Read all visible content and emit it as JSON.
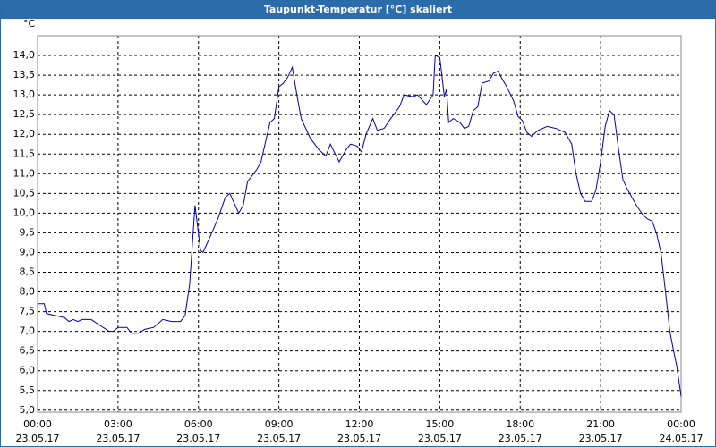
{
  "window_title": "Taupunkt-Temperatur [°C] skaliert",
  "chart_data": {
    "type": "line",
    "yunit": "°C",
    "grid": true,
    "xlim": [
      0,
      24
    ],
    "ylim": [
      4.95,
      14.5
    ],
    "xticks": [
      {
        "value": 0,
        "label": [
          "00:00",
          "23.05.17"
        ]
      },
      {
        "value": 3,
        "label": [
          "03:00",
          "23.05.17"
        ]
      },
      {
        "value": 6,
        "label": [
          "06:00",
          "23.05.17"
        ]
      },
      {
        "value": 9,
        "label": [
          "09:00",
          "23.05.17"
        ]
      },
      {
        "value": 12,
        "label": [
          "12:00",
          "23.05.17"
        ]
      },
      {
        "value": 15,
        "label": [
          "15:00",
          "23.05.17"
        ]
      },
      {
        "value": 18,
        "label": [
          "18:00",
          "23.05.17"
        ]
      },
      {
        "value": 21,
        "label": [
          "21:00",
          "23.05.17"
        ]
      },
      {
        "value": 24,
        "label": [
          "00:00",
          "24.05.17"
        ]
      }
    ],
    "yticks": [
      {
        "value": 5,
        "label": "5,0"
      },
      {
        "value": 5.5,
        "label": "5,5"
      },
      {
        "value": 6,
        "label": "6,0"
      },
      {
        "value": 6.5,
        "label": "6,5"
      },
      {
        "value": 7,
        "label": "7,0"
      },
      {
        "value": 7.5,
        "label": "7,5"
      },
      {
        "value": 8,
        "label": "8,0"
      },
      {
        "value": 8.5,
        "label": "8,5"
      },
      {
        "value": 9,
        "label": "9,0"
      },
      {
        "value": 9.5,
        "label": "9,5"
      },
      {
        "value": 10,
        "label": "10,0"
      },
      {
        "value": 10.5,
        "label": "10,5"
      },
      {
        "value": 11,
        "label": "11,0"
      },
      {
        "value": 11.5,
        "label": "11,5"
      },
      {
        "value": 12,
        "label": "12,0"
      },
      {
        "value": 12.5,
        "label": "12,5"
      },
      {
        "value": 13,
        "label": "13,0"
      },
      {
        "value": 13.5,
        "label": "13,5"
      },
      {
        "value": 14,
        "label": "14,0"
      }
    ],
    "color": "#0000a8",
    "x": [
      0,
      0.25,
      0.33,
      0.67,
      1,
      1.17,
      1.33,
      1.5,
      1.67,
      2,
      2.33,
      2.67,
      2.83,
      3,
      3.33,
      3.5,
      3.75,
      4,
      4.33,
      4.67,
      5,
      5.33,
      5.5,
      5.67,
      5.87,
      6.08,
      6.17,
      6.5,
      6.75,
      7,
      7.17,
      7.5,
      7.67,
      7.83,
      8.17,
      8.33,
      8.5,
      8.67,
      8.83,
      9,
      9.17,
      9.33,
      9.5,
      9.67,
      9.83,
      10.17,
      10.5,
      10.75,
      10.92,
      11.25,
      11.5,
      11.67,
      11.92,
      12.08,
      12.25,
      12.5,
      12.67,
      12.92,
      13.17,
      13.5,
      13.67,
      14,
      14.17,
      14.5,
      14.75,
      14.83,
      15,
      15.17,
      15.25,
      15.33,
      15.5,
      15.75,
      15.92,
      16.08,
      16.25,
      16.42,
      16.58,
      16.83,
      17,
      17.17,
      17.33,
      17.5,
      17.75,
      17.92,
      18.08,
      18.25,
      18.42,
      18.67,
      19,
      19.33,
      19.67,
      19.92,
      20.08,
      20.25,
      20.42,
      20.67,
      20.83,
      21,
      21.17,
      21.33,
      21.5,
      21.67,
      21.83,
      22,
      22.33,
      22.58,
      22.75,
      22.92,
      23.08,
      23.25,
      23.42,
      23.58,
      23.75,
      23.83,
      24
    ],
    "values": [
      7.7,
      7.7,
      7.45,
      7.4,
      7.35,
      7.25,
      7.3,
      7.25,
      7.3,
      7.3,
      7.15,
      7.0,
      7.0,
      7.1,
      7.1,
      6.95,
      6.95,
      7.05,
      7.1,
      7.3,
      7.25,
      7.25,
      7.4,
      8.2,
      10.2,
      9.05,
      9.0,
      9.5,
      9.9,
      10.4,
      10.5,
      10.0,
      10.2,
      10.8,
      11.1,
      11.3,
      11.8,
      12.3,
      12.4,
      13.2,
      13.3,
      13.45,
      13.7,
      13.0,
      12.4,
      11.9,
      11.6,
      11.45,
      11.75,
      11.3,
      11.6,
      11.75,
      11.7,
      11.55,
      12.0,
      12.4,
      12.1,
      12.15,
      12.4,
      12.7,
      13.0,
      12.95,
      13.0,
      12.75,
      13.0,
      14.0,
      13.95,
      12.95,
      13.15,
      12.3,
      12.4,
      12.3,
      12.15,
      12.2,
      12.6,
      12.7,
      13.3,
      13.35,
      13.55,
      13.6,
      13.4,
      13.2,
      12.85,
      12.45,
      12.35,
      12.05,
      11.95,
      12.1,
      12.2,
      12.15,
      12.05,
      11.75,
      11.0,
      10.5,
      10.3,
      10.3,
      10.6,
      11.3,
      12.2,
      12.6,
      12.5,
      11.6,
      10.85,
      10.6,
      10.2,
      9.95,
      9.85,
      9.8,
      9.5,
      9.0,
      8.0,
      7.0,
      6.4,
      6.15,
      5.35
    ]
  }
}
